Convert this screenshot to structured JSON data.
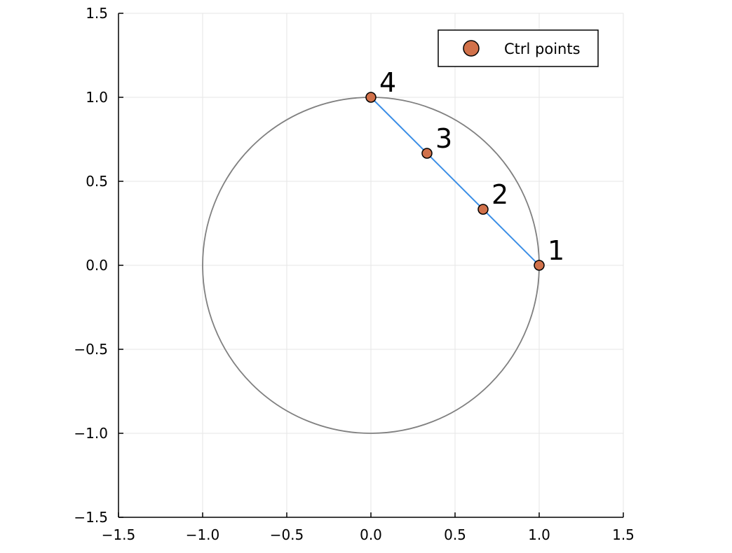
{
  "chart_data": {
    "type": "scatter",
    "title": "",
    "xlabel": "",
    "ylabel": "",
    "xlim": [
      -1.5,
      1.5
    ],
    "ylim": [
      -1.5,
      1.5
    ],
    "aspect": "equal",
    "grid": true,
    "legend_position": "top-right",
    "xticks": [
      -1.5,
      -1.0,
      -0.5,
      0.0,
      0.5,
      1.0,
      1.5
    ],
    "yticks": [
      -1.5,
      -1.0,
      -0.5,
      0.0,
      0.5,
      1.0,
      1.5
    ],
    "xtick_labels": [
      "−1.5",
      "−1.0",
      "−0.5",
      "0.0",
      "0.5",
      "1.0",
      "1.5"
    ],
    "ytick_labels": [
      "−1.5",
      "−1.0",
      "−0.5",
      "0.0",
      "0.5",
      "1.0",
      "1.5"
    ],
    "circle": {
      "center": [
        0,
        0
      ],
      "radius": 1,
      "color": "#808080"
    },
    "segment": {
      "x": [
        1.0,
        0.0
      ],
      "y": [
        0.0,
        1.0
      ],
      "color": "#3b8ee6"
    },
    "series": [
      {
        "name": "Ctrl points",
        "color": "#d1714a",
        "points": [
          {
            "x": 1.0,
            "y": 0.0,
            "label": "1"
          },
          {
            "x": 0.6667,
            "y": 0.3333,
            "label": "2"
          },
          {
            "x": 0.3333,
            "y": 0.6667,
            "label": "3"
          },
          {
            "x": 0.0,
            "y": 1.0,
            "label": "4"
          }
        ]
      }
    ]
  }
}
